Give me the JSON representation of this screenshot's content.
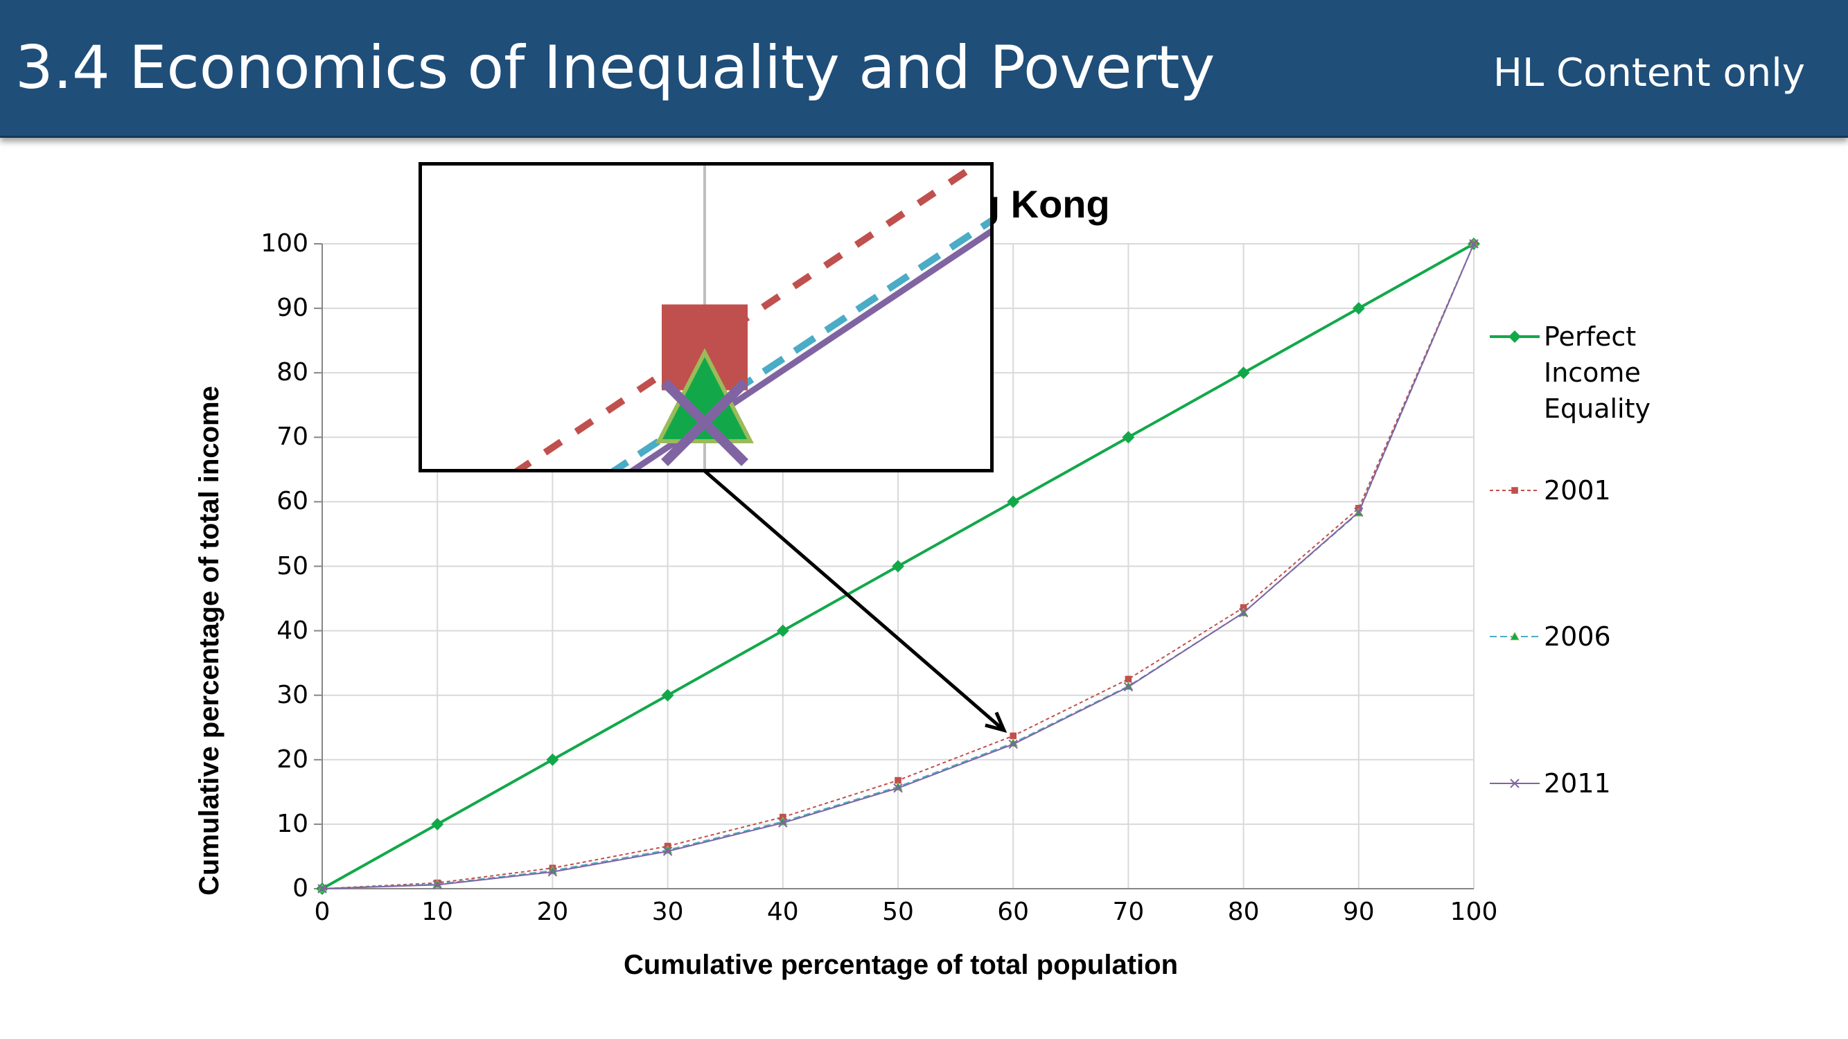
{
  "header": {
    "title": "3.4 Economics of Inequality and Poverty",
    "tag": "HL Content only"
  },
  "colors": {
    "header_bg": "#1f4e79",
    "perfect_equality": "#12a84a",
    "year_2001": "#c0504d",
    "year_2006": "#4aacc6",
    "year_2011": "#8064a2"
  },
  "chart_data": {
    "type": "line",
    "title": "Hong Kong",
    "xlabel": "Cumulative percentage of total population",
    "ylabel": "Cumulative percentage of total income",
    "x": [
      0,
      10,
      20,
      30,
      40,
      50,
      60,
      70,
      80,
      90,
      100
    ],
    "xlim": [
      0,
      100
    ],
    "ylim": [
      0,
      100
    ],
    "xticks": [
      "0",
      "10",
      "20",
      "30",
      "40",
      "50",
      "60",
      "70",
      "80",
      "90",
      "100"
    ],
    "yticks": [
      "0",
      "10",
      "20",
      "30",
      "40",
      "50",
      "60",
      "70",
      "80",
      "90",
      "100"
    ],
    "grid": true,
    "legend_position": "right",
    "series": [
      {
        "name": "Perfect Income Equality",
        "values": [
          0,
          10,
          20,
          30,
          40,
          50,
          60,
          70,
          80,
          90,
          100
        ]
      },
      {
        "name": "2001",
        "values": [
          0,
          0.9,
          3.2,
          6.6,
          11.1,
          16.8,
          23.7,
          32.5,
          43.6,
          59.0,
          100
        ]
      },
      {
        "name": "2006",
        "values": [
          0,
          0.7,
          2.8,
          6.0,
          10.4,
          15.8,
          22.6,
          31.4,
          42.8,
          58.3,
          100
        ]
      },
      {
        "name": "2011",
        "values": [
          0,
          0.6,
          2.6,
          5.8,
          10.2,
          15.6,
          22.4,
          31.3,
          42.8,
          58.4,
          100
        ]
      }
    ],
    "legend_lines": [
      [
        "Perfect",
        "Income",
        "Equality"
      ],
      [
        "2001"
      ],
      [
        "2006"
      ],
      [
        "2011"
      ]
    ],
    "annotation": "zoom inset magnifying the series at x = 60"
  }
}
